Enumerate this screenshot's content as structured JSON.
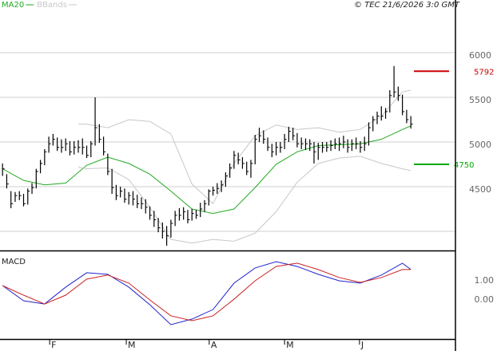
{
  "chart_data": [
    {
      "type": "ohlc",
      "source": "© TEC 21/6/2026 3:0 GMT",
      "ylim": [
        3786,
        6589
      ],
      "yticks": [
        4500,
        5000,
        5500,
        6000
      ],
      "ygrid": [
        4000,
        4500,
        5000,
        5500,
        6000
      ],
      "grid": true,
      "bar_color": "#000000",
      "close": [
        4700,
        4530,
        4310,
        4400,
        4400,
        4310,
        4450,
        4490,
        4670,
        4760,
        4890,
        4980,
        5030,
        4940,
        4940,
        4980,
        4890,
        4940,
        4940,
        4940,
        4850,
        4980,
        5160,
        5030,
        4890,
        4670,
        4490,
        4400,
        4450,
        4360,
        4400,
        4360,
        4310,
        4310,
        4270,
        4180,
        4130,
        4040,
        4000,
        3950,
        4090,
        4180,
        4180,
        4220,
        4130,
        4200,
        4180,
        4250,
        4310,
        4450,
        4460,
        4480,
        4520,
        4620,
        4710,
        4850,
        4800,
        4760,
        4670,
        4760,
        5030,
        5070,
        5030,
        4940,
        4890,
        4940,
        4940,
        5030,
        5120,
        5070,
        4980,
        4980,
        4980,
        4980,
        4890,
        4940,
        4940,
        4940,
        4960,
        4980,
        4980,
        5000,
        4940,
        4980,
        4980,
        4940,
        4980,
        5160,
        5250,
        5290,
        5290,
        5340,
        5520,
        5560,
        5520,
        5340,
        5250,
        5200
      ],
      "high": [
        4760,
        4640,
        4450,
        4440,
        4450,
        4420,
        4480,
        4540,
        4700,
        4800,
        4920,
        5060,
        5090,
        5050,
        5030,
        5040,
        5010,
        5010,
        5020,
        5040,
        4960,
        5010,
        5500,
        5200,
        5060,
        4870,
        4700,
        4520,
        4500,
        4480,
        4440,
        4450,
        4410,
        4380,
        4360,
        4280,
        4230,
        4150,
        4100,
        4060,
        4130,
        4230,
        4260,
        4270,
        4240,
        4250,
        4240,
        4320,
        4350,
        4470,
        4500,
        4540,
        4570,
        4660,
        4760,
        4900,
        4880,
        4830,
        4780,
        4800,
        5080,
        5160,
        5130,
        5050,
        4980,
        5000,
        5000,
        5090,
        5170,
        5160,
        5100,
        5050,
        5040,
        5030,
        5000,
        4990,
        5000,
        5000,
        5020,
        5040,
        5050,
        5070,
        5030,
        5030,
        5050,
        5010,
        5060,
        5220,
        5290,
        5340,
        5400,
        5380,
        5580,
        5850,
        5620,
        5530,
        5360,
        5290
      ],
      "low": [
        4620,
        4480,
        4260,
        4330,
        4350,
        4280,
        4300,
        4420,
        4480,
        4650,
        4740,
        4880,
        4960,
        4900,
        4880,
        4900,
        4850,
        4860,
        4880,
        4860,
        4820,
        4830,
        4960,
        4990,
        4850,
        4630,
        4420,
        4350,
        4380,
        4320,
        4300,
        4290,
        4260,
        4250,
        4200,
        4130,
        4050,
        3990,
        3920,
        3840,
        3930,
        4060,
        4120,
        4130,
        4090,
        4120,
        4140,
        4160,
        4220,
        4290,
        4400,
        4420,
        4440,
        4500,
        4600,
        4700,
        4750,
        4700,
        4630,
        4600,
        4750,
        5000,
        4980,
        4900,
        4830,
        4850,
        4880,
        4920,
        5000,
        5020,
        4940,
        4920,
        4910,
        4900,
        4760,
        4800,
        4880,
        4890,
        4900,
        4920,
        4900,
        4930,
        4880,
        4900,
        4920,
        4880,
        4900,
        4960,
        5120,
        5200,
        5240,
        5260,
        5330,
        5500,
        5460,
        5300,
        5210,
        5150
      ],
      "lines": [
        {
          "name": "MA20",
          "color": "#22aa22",
          "x": [
            0,
            5,
            10,
            15,
            20,
            25,
            30,
            35,
            40,
            45,
            50,
            55,
            60,
            65,
            70,
            75,
            80,
            85,
            90,
            95,
            97
          ],
          "values": [
            4700,
            4570,
            4520,
            4540,
            4740,
            4830,
            4760,
            4640,
            4450,
            4250,
            4200,
            4250,
            4490,
            4750,
            4890,
            4960,
            4970,
            4980,
            5030,
            5140,
            5180
          ]
        },
        {
          "name": "BBands",
          "color": "#c8c8c8",
          "x": [
            18,
            20,
            25,
            30,
            35,
            40,
            45,
            50,
            55,
            60,
            65,
            70,
            75,
            80,
            85,
            90,
            95,
            97
          ],
          "upper": [
            5200,
            5200,
            5160,
            5250,
            5230,
            5090,
            4530,
            4310,
            4760,
            5070,
            5190,
            5140,
            5160,
            5110,
            5140,
            5290,
            5560,
            5580
          ],
          "lower": [
            4720,
            4700,
            4710,
            4580,
            4270,
            3910,
            3870,
            3910,
            3890,
            3980,
            4220,
            4550,
            4760,
            4820,
            4840,
            4760,
            4700,
            4680
          ]
        }
      ],
      "price_markers": [
        {
          "value": 5792,
          "color": "#cc0000"
        },
        {
          "value": 4750,
          "color": "#00aa00"
        }
      ]
    },
    {
      "type": "line",
      "title": "MACD",
      "xlim": [
        -0.6,
        107.6
      ],
      "xticks": [
        {
          "value": 11.2,
          "label": "F"
        },
        {
          "value": 29.4,
          "label": "M"
        },
        {
          "value": 49.1,
          "label": "A"
        },
        {
          "value": 67,
          "label": "M"
        },
        {
          "value": 84.8,
          "label": "J"
        }
      ],
      "ylim": [
        -2.21,
        2.33
      ],
      "yticks": [
        {
          "value": 1,
          "label": "1.00"
        },
        {
          "value": 0,
          "label": "0.00"
        }
      ],
      "series": [
        {
          "name": "MACD",
          "color": "#2222cc",
          "x": [
            0,
            5,
            10,
            15,
            20,
            25,
            30,
            35,
            40,
            45,
            50,
            55,
            60,
            65,
            70,
            75,
            80,
            85,
            90,
            95,
            97
          ],
          "values": [
            0.58,
            -0.21,
            -0.38,
            0.5,
            1.25,
            1.17,
            0.5,
            -0.42,
            -1.46,
            -1.17,
            -0.67,
            0.71,
            1.5,
            1.83,
            1.58,
            1.17,
            0.83,
            0.71,
            1.13,
            1.75,
            1.42
          ]
        },
        {
          "name": "Signal",
          "color": "#cc2222",
          "x": [
            0,
            5,
            10,
            15,
            20,
            25,
            30,
            35,
            40,
            45,
            50,
            55,
            60,
            65,
            70,
            75,
            80,
            85,
            90,
            95,
            97
          ],
          "values": [
            0.58,
            0.08,
            -0.38,
            0.08,
            0.92,
            1.13,
            0.71,
            -0.17,
            -1.0,
            -1.25,
            -1.0,
            -0.13,
            0.83,
            1.58,
            1.75,
            1.42,
            1.0,
            0.75,
            1.0,
            1.42,
            1.42
          ]
        }
      ]
    }
  ]
}
